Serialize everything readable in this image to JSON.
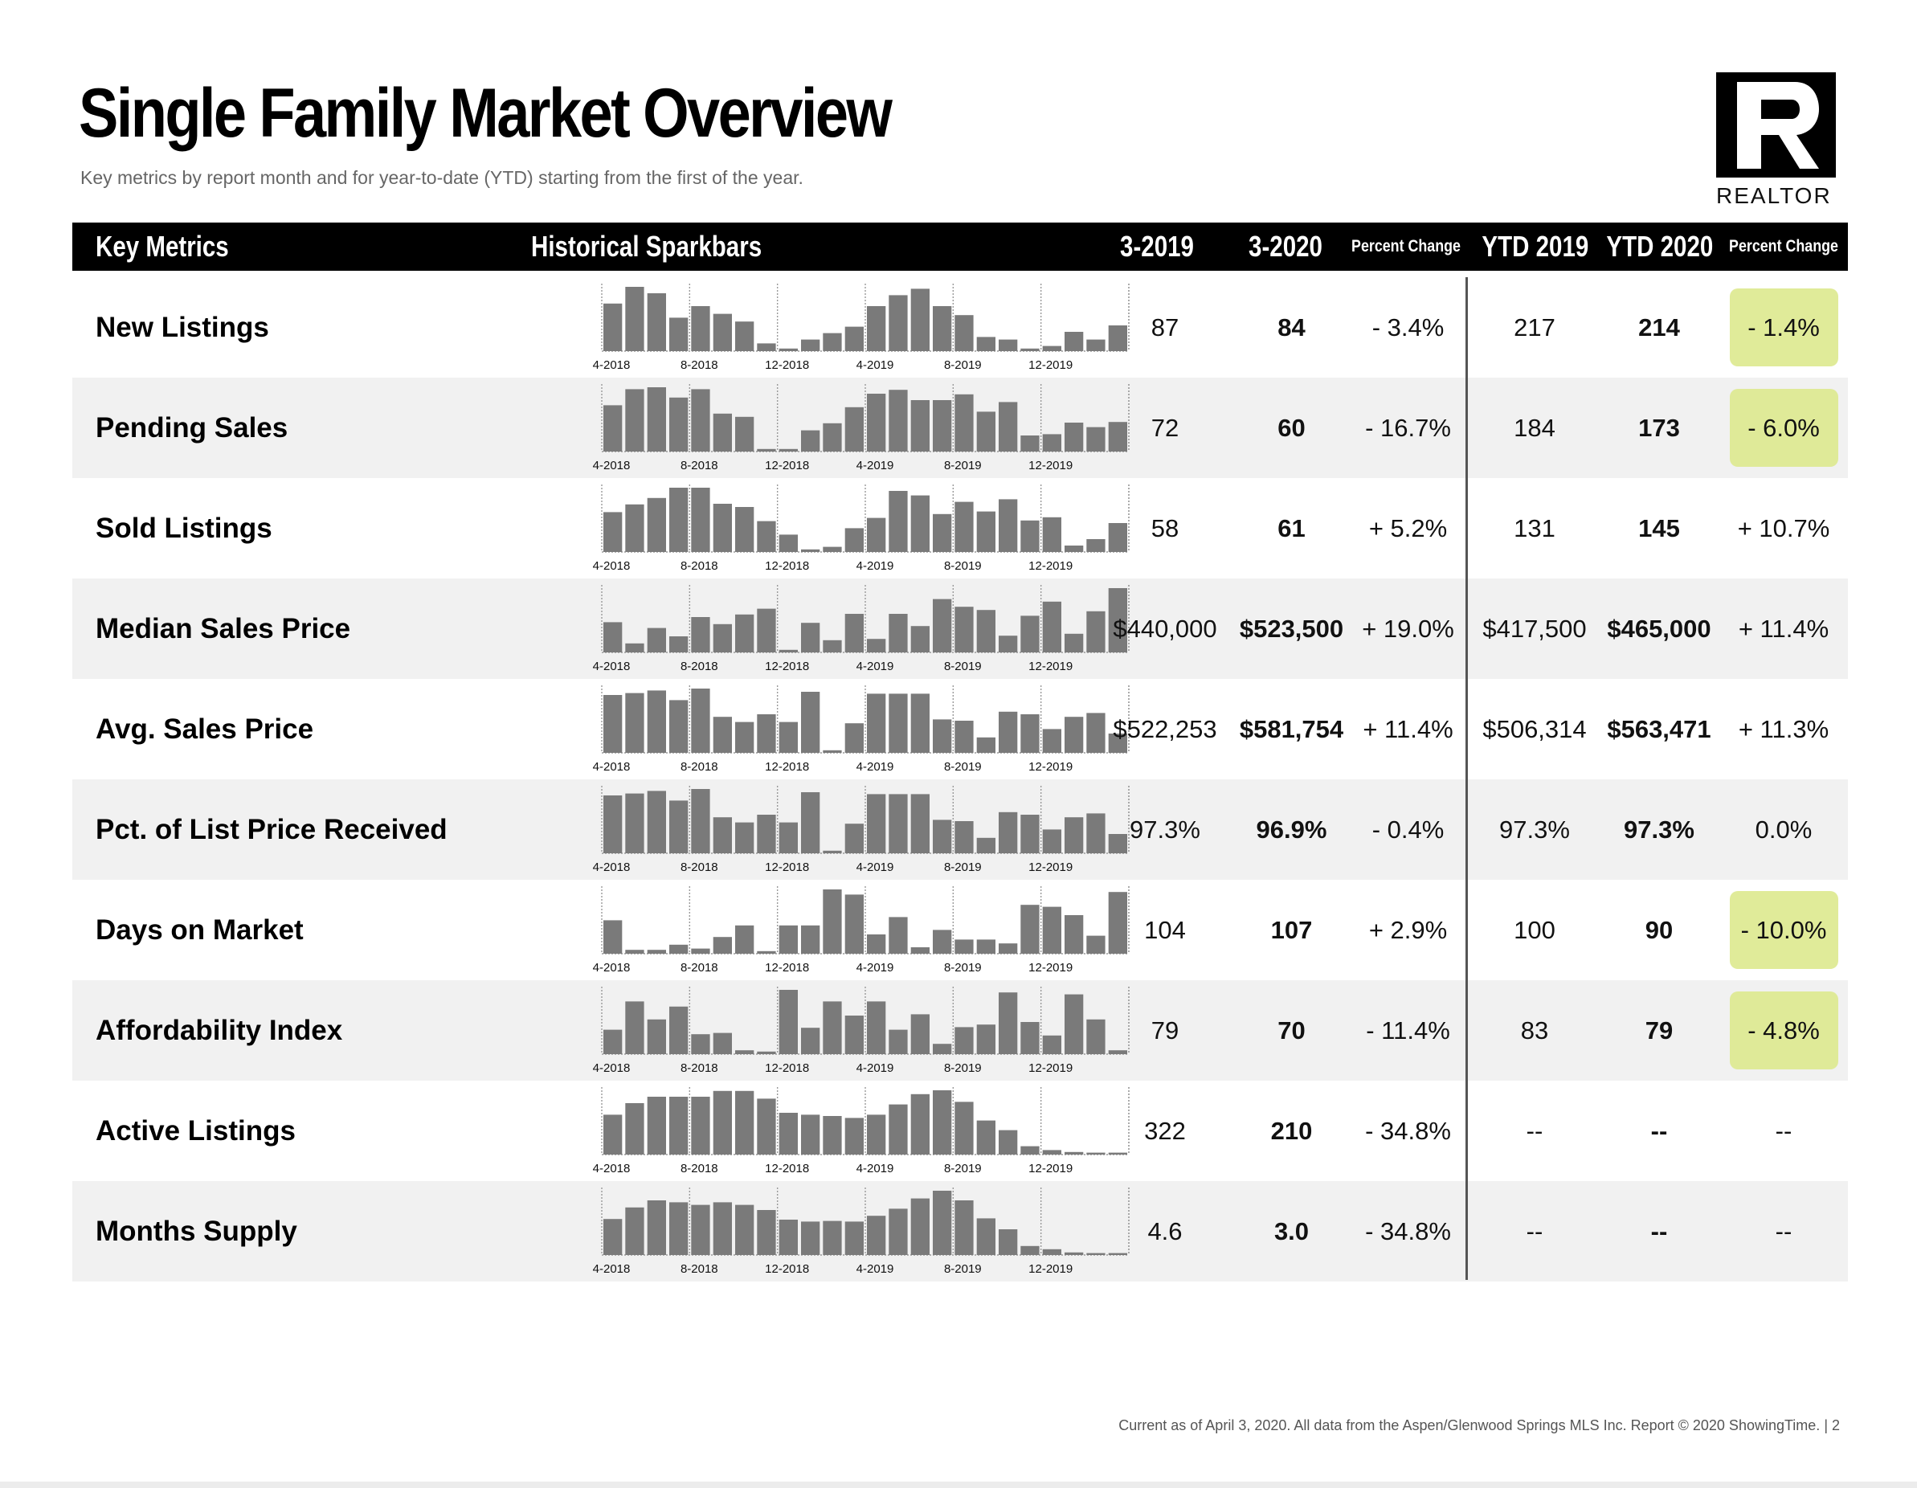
{
  "title": "Single Family Market Overview",
  "subtitle": "Key metrics by report month and for year-to-date (YTD) starting from the first of the year.",
  "logo_text": "REALTOR",
  "header": {
    "key_metrics": "Key Metrics",
    "sparkbars": "Historical Sparkbars",
    "col_2019": "3-2019",
    "col_2020": "3-2020",
    "pct_change": "Percent Change",
    "ytd_2019": "YTD 2019",
    "ytd_2020": "YTD 2020",
    "ytd_pct_change": "Percent Change"
  },
  "spark_axis_labels": [
    "4-2018",
    "8-2018",
    "12-2018",
    "4-2019",
    "8-2019",
    "12-2019"
  ],
  "rows": [
    {
      "metric": "New Listings",
      "v2019": "87",
      "v2020": "84",
      "pct": "- 3.4%",
      "ytd2019": "217",
      "ytd2020": "214",
      "ytdpct": "- 1.4%",
      "highlight": true,
      "bars": [
        0.74,
        1.0,
        0.9,
        0.52,
        0.7,
        0.58,
        0.46,
        0.12,
        0.04,
        0.18,
        0.28,
        0.38,
        0.7,
        0.87,
        0.97,
        0.7,
        0.56,
        0.22,
        0.18,
        0.04,
        0.08,
        0.3,
        0.18,
        0.4
      ]
    },
    {
      "metric": "Pending Sales",
      "v2019": "72",
      "v2020": "60",
      "pct": "- 16.7%",
      "ytd2019": "184",
      "ytd2020": "173",
      "ytdpct": "- 6.0%",
      "highlight": true,
      "bars": [
        0.72,
        0.97,
        1.0,
        0.84,
        0.97,
        0.59,
        0.54,
        0.04,
        0.04,
        0.33,
        0.44,
        0.69,
        0.9,
        0.96,
        0.8,
        0.8,
        0.89,
        0.62,
        0.77,
        0.25,
        0.27,
        0.45,
        0.38,
        0.46
      ]
    },
    {
      "metric": "Sold Listings",
      "v2019": "58",
      "v2020": "61",
      "pct": "+ 5.2%",
      "ytd2019": "131",
      "ytd2020": "145",
      "ytdpct": "+ 10.7%",
      "highlight": false,
      "bars": [
        0.62,
        0.74,
        0.84,
        1.0,
        1.0,
        0.75,
        0.7,
        0.48,
        0.27,
        0.04,
        0.08,
        0.37,
        0.53,
        0.95,
        0.88,
        0.59,
        0.78,
        0.63,
        0.82,
        0.49,
        0.54,
        0.1,
        0.2,
        0.45
      ]
    },
    {
      "metric": "Median Sales Price",
      "v2019": "$440,000",
      "v2020": "$523,500",
      "pct": "+ 19.0%",
      "ytd2019": "$417,500",
      "ytd2020": "$465,000",
      "ytdpct": "+ 11.4%",
      "highlight": false,
      "bars": [
        0.47,
        0.14,
        0.38,
        0.25,
        0.55,
        0.44,
        0.59,
        0.68,
        0.04,
        0.46,
        0.19,
        0.6,
        0.21,
        0.6,
        0.41,
        0.83,
        0.71,
        0.66,
        0.26,
        0.57,
        0.79,
        0.29,
        0.64,
        1.0
      ]
    },
    {
      "metric": "Avg. Sales Price",
      "v2019": "$522,253",
      "v2020": "$581,754",
      "pct": "+ 11.4%",
      "ytd2019": "$506,314",
      "ytd2020": "$563,471",
      "ytdpct": "+ 11.3%",
      "highlight": false,
      "bars": [
        0.9,
        0.93,
        0.97,
        0.82,
        1.0,
        0.56,
        0.48,
        0.6,
        0.48,
        0.95,
        0.04,
        0.46,
        0.92,
        0.92,
        0.92,
        0.52,
        0.5,
        0.24,
        0.64,
        0.6,
        0.37,
        0.56,
        0.62,
        0.3
      ]
    },
    {
      "metric": "Pct. of List Price Received",
      "v2019": "97.3%",
      "v2020": "96.9%",
      "pct": "- 0.4%",
      "ytd2019": "97.3%",
      "ytd2020": "97.3%",
      "ytdpct": "0.0%",
      "highlight": false,
      "bars": [
        0.9,
        0.93,
        0.97,
        0.82,
        1.0,
        0.56,
        0.48,
        0.6,
        0.48,
        0.95,
        0.04,
        0.46,
        0.92,
        0.92,
        0.92,
        0.52,
        0.5,
        0.24,
        0.64,
        0.6,
        0.37,
        0.56,
        0.62,
        0.3
      ]
    },
    {
      "metric": "Days on Market",
      "v2019": "104",
      "v2020": "107",
      "pct": "+ 2.9%",
      "ytd2019": "100",
      "ytd2020": "90",
      "ytdpct": "- 10.0%",
      "highlight": true,
      "bars": [
        0.52,
        0.06,
        0.06,
        0.14,
        0.08,
        0.26,
        0.44,
        0.04,
        0.44,
        0.44,
        1.0,
        0.92,
        0.3,
        0.57,
        0.1,
        0.37,
        0.22,
        0.22,
        0.16,
        0.76,
        0.73,
        0.6,
        0.28,
        0.96
      ]
    },
    {
      "metric": "Affordability Index",
      "v2019": "79",
      "v2020": "70",
      "pct": "- 11.4%",
      "ytd2019": "83",
      "ytd2020": "79",
      "ytdpct": "- 4.8%",
      "highlight": true,
      "bars": [
        0.38,
        0.82,
        0.54,
        0.74,
        0.31,
        0.33,
        0.06,
        0.04,
        1.0,
        0.41,
        0.82,
        0.6,
        0.82,
        0.38,
        0.62,
        0.16,
        0.42,
        0.46,
        0.96,
        0.5,
        0.29,
        0.93,
        0.54,
        0.06
      ]
    },
    {
      "metric": "Active Listings",
      "v2019": "322",
      "v2020": "210",
      "pct": "- 34.8%",
      "ytd2019": "--",
      "ytd2020": "--",
      "ytdpct": "--",
      "highlight": false,
      "bars": [
        0.62,
        0.8,
        0.9,
        0.9,
        0.9,
        0.99,
        0.99,
        0.87,
        0.65,
        0.62,
        0.6,
        0.57,
        0.62,
        0.78,
        0.94,
        1.0,
        0.82,
        0.53,
        0.38,
        0.13,
        0.07,
        0.04,
        0.03,
        0.03
      ]
    },
    {
      "metric": "Months Supply",
      "v2019": "4.6",
      "v2020": "3.0",
      "pct": "- 34.8%",
      "ytd2019": "--",
      "ytd2020": "--",
      "ytdpct": "--",
      "highlight": false,
      "bars": [
        0.56,
        0.74,
        0.85,
        0.82,
        0.78,
        0.82,
        0.78,
        0.7,
        0.55,
        0.52,
        0.53,
        0.52,
        0.61,
        0.72,
        0.88,
        1.0,
        0.85,
        0.57,
        0.4,
        0.14,
        0.09,
        0.04,
        0.03,
        0.03
      ]
    }
  ],
  "footer": "Current as of April 3, 2020.  All data from the Aspen/Glenwood Springs MLS Inc. Report © 2020 ShowingTime.  |  2"
}
